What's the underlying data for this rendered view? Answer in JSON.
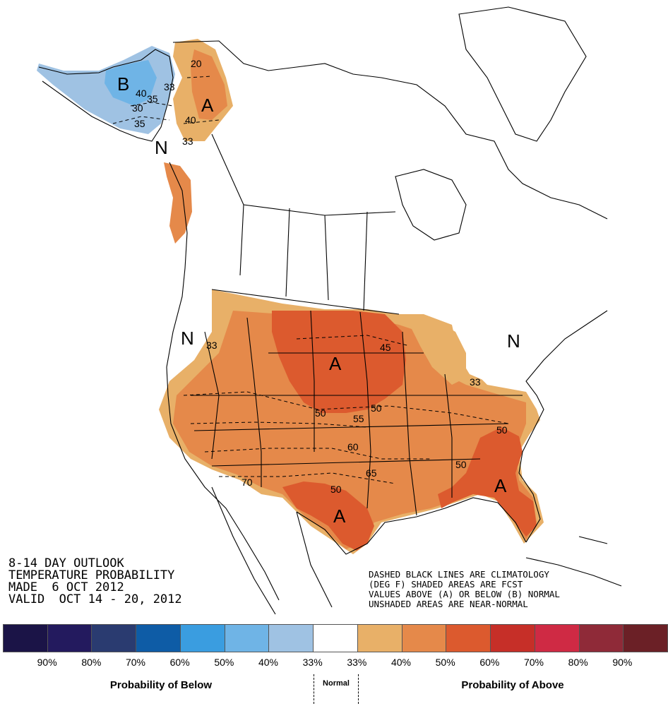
{
  "title": {
    "line1": "8-14 DAY OUTLOOK",
    "line2": "TEMPERATURE PROBABILITY",
    "line3": "MADE  6 OCT 2012",
    "line4": "VALID  OCT 14 - 20, 2012"
  },
  "notes": {
    "line1": "DASHED BLACK LINES ARE CLIMATOLOGY",
    "line2": "(DEG F) SHADED AREAS ARE FCST",
    "line3": "VALUES ABOVE (A) OR BELOW (B) NORMAL",
    "line4": "UNSHADED AREAS ARE NEAR-NORMAL"
  },
  "map_labels": {
    "below": "B",
    "above": "A",
    "normal": "N",
    "contour_20": "20",
    "contour_30": "30",
    "contour_33": "33",
    "contour_35": "35",
    "contour_40": "40",
    "contour_45": "45",
    "contour_50": "50",
    "contour_55": "55",
    "contour_60": "60",
    "contour_65": "65",
    "contour_70": "70"
  },
  "legend": {
    "colors": [
      "#1b1447",
      "#231a5e",
      "#2a3b70",
      "#0e5ca6",
      "#3a9de0",
      "#6fb4e6",
      "#9fc2e3",
      "#ffffff",
      "#e8b068",
      "#e5894a",
      "#dc5a2e",
      "#c62f28",
      "#cf2a44",
      "#8f2a38",
      "#6b2026"
    ],
    "ticks": [
      "90%",
      "80%",
      "70%",
      "60%",
      "50%",
      "40%",
      "33%",
      "33%",
      "40%",
      "50%",
      "60%",
      "70%",
      "80%",
      "90%"
    ],
    "below_label": "Probability of Below",
    "normal_label": "Normal",
    "above_label": "Probability of Above"
  }
}
